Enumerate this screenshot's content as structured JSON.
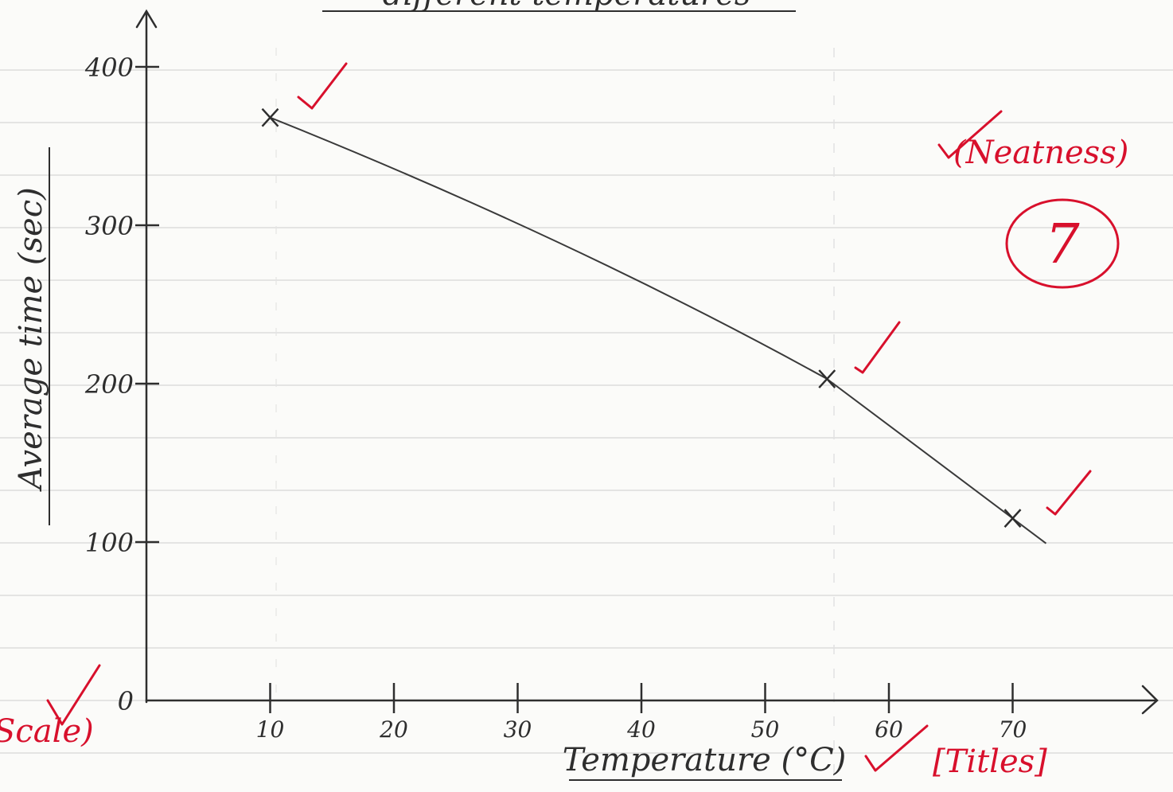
{
  "chart_data": {
    "type": "line",
    "title": "different temperatures",
    "xlabel": "Temperature (°C)",
    "ylabel": "Average time (sec)",
    "xlim": [
      0,
      75
    ],
    "ylim": [
      0,
      420
    ],
    "x_ticks": [
      10,
      20,
      30,
      40,
      50,
      60,
      70
    ],
    "y_ticks": [
      0,
      100,
      200,
      300,
      400
    ],
    "series": [
      {
        "points": [
          {
            "x": 10,
            "y": 368
          },
          {
            "x": 55,
            "y": 203
          },
          {
            "x": 70,
            "y": 115
          }
        ]
      }
    ],
    "grid": "ruled paper lines",
    "line_color": "#3a3a3a"
  },
  "annotations": {
    "neatness": "(Neatness)",
    "scale": "Scale)",
    "titles": "[Titles]",
    "score": "7",
    "mark_color": "#d8102c"
  }
}
